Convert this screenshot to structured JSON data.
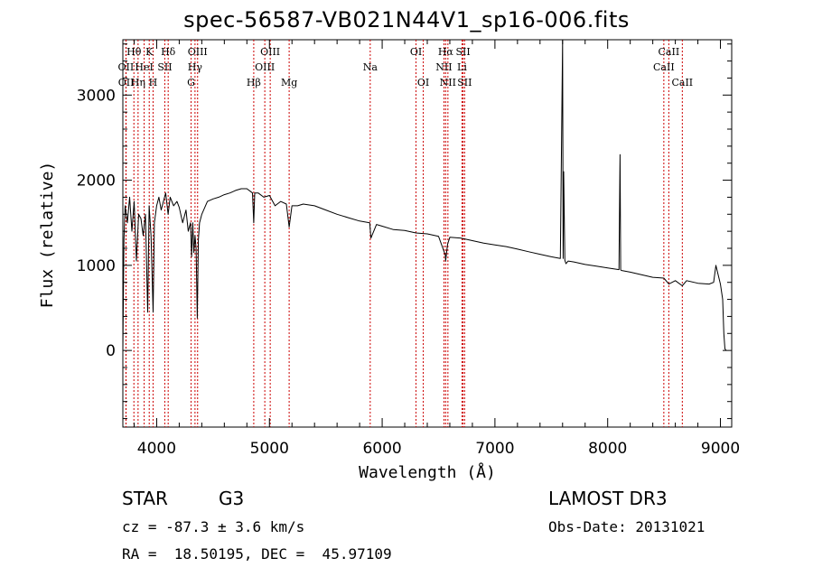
{
  "chart_data": {
    "type": "line",
    "title": "spec-56587-VB021N44V1_sp16-006.fits",
    "xlabel": "Wavelength (Å)",
    "ylabel": "Flux (relative)",
    "xlim": [
      3700,
      9100
    ],
    "ylim": [
      -900,
      3650
    ],
    "xticks": [
      {
        "value": 4000,
        "label": "4000"
      },
      {
        "value": 5000,
        "label": "5000"
      },
      {
        "value": 6000,
        "label": "6000"
      },
      {
        "value": 7000,
        "label": "7000"
      },
      {
        "value": 8000,
        "label": "8000"
      },
      {
        "value": 9000,
        "label": "9000"
      }
    ],
    "yticks": [
      {
        "value": 0,
        "label": "0"
      },
      {
        "value": 1000,
        "label": "1000"
      },
      {
        "value": 2000,
        "label": "2000"
      },
      {
        "value": 3000,
        "label": "3000"
      }
    ],
    "series": [
      {
        "name": "flux",
        "x": [
          3700,
          3710,
          3720,
          3740,
          3760,
          3780,
          3800,
          3820,
          3840,
          3860,
          3880,
          3900,
          3920,
          3933,
          3950,
          3968,
          3980,
          4000,
          4020,
          4040,
          4060,
          4080,
          4101,
          4120,
          4150,
          4180,
          4200,
          4230,
          4260,
          4280,
          4300,
          4310,
          4320,
          4330,
          4340,
          4350,
          4360,
          4370,
          4380,
          4400,
          4450,
          4500,
          4550,
          4600,
          4650,
          4700,
          4750,
          4800,
          4850,
          4861,
          4870,
          4900,
          4950,
          5000,
          5050,
          5100,
          5150,
          5175,
          5200,
          5250,
          5300,
          5400,
          5500,
          5600,
          5700,
          5800,
          5890,
          5900,
          5950,
          6000,
          6100,
          6200,
          6300,
          6400,
          6500,
          6560,
          6563,
          6580,
          6600,
          6700,
          6800,
          6900,
          7000,
          7100,
          7200,
          7300,
          7400,
          7500,
          7580,
          7600,
          7605,
          7610,
          7620,
          7630,
          7650,
          7700,
          7800,
          7900,
          8000,
          8100,
          8110,
          8115,
          8120,
          8200,
          8300,
          8400,
          8498,
          8542,
          8600,
          8662,
          8700,
          8800,
          8900,
          8940,
          8960,
          9000,
          9020,
          9030,
          9040,
          9050
        ],
        "y": [
          0,
          1300,
          1700,
          1500,
          1800,
          1400,
          1750,
          1050,
          1600,
          1550,
          1350,
          1600,
          450,
          1700,
          1350,
          450,
          1500,
          1700,
          1800,
          1650,
          1750,
          1850,
          1600,
          1800,
          1700,
          1750,
          1680,
          1500,
          1650,
          1400,
          1500,
          1100,
          1500,
          1150,
          1350,
          1200,
          380,
          1300,
          1500,
          1600,
          1750,
          1780,
          1800,
          1830,
          1850,
          1880,
          1900,
          1900,
          1850,
          1500,
          1850,
          1850,
          1800,
          1820,
          1700,
          1750,
          1720,
          1450,
          1700,
          1700,
          1720,
          1700,
          1650,
          1600,
          1560,
          1520,
          1500,
          1320,
          1480,
          1460,
          1420,
          1410,
          1380,
          1370,
          1340,
          1120,
          1050,
          1250,
          1330,
          1320,
          1290,
          1260,
          1240,
          1220,
          1190,
          1160,
          1130,
          1100,
          1080,
          3680,
          1080,
          2100,
          1060,
          1020,
          1050,
          1040,
          1010,
          990,
          970,
          950,
          2300,
          950,
          940,
          920,
          890,
          860,
          850,
          780,
          820,
          760,
          820,
          790,
          780,
          800,
          1000,
          780,
          600,
          200,
          20,
          0
        ]
      }
    ],
    "lines": [
      {
        "name": "OII",
        "x": 3727,
        "row": 1
      },
      {
        "name": "OII",
        "x": 3729,
        "row": 2
      },
      {
        "name": "Hθ",
        "x": 3798,
        "row": 0
      },
      {
        "name": "Hη",
        "x": 3835,
        "row": 2
      },
      {
        "name": "HeI",
        "x": 3889,
        "row": 1
      },
      {
        "name": "K",
        "x": 3934,
        "row": 0
      },
      {
        "name": "H",
        "x": 3968,
        "row": 2
      },
      {
        "name": "SII",
        "x": 4072,
        "row": 1
      },
      {
        "name": "Hδ",
        "x": 4102,
        "row": 0
      },
      {
        "name": "G",
        "x": 4305,
        "row": 2
      },
      {
        "name": "Hγ",
        "x": 4340,
        "row": 1
      },
      {
        "name": "OIII",
        "x": 4363,
        "row": 0
      },
      {
        "name": "Hβ",
        "x": 4861,
        "row": 2
      },
      {
        "name": "OIII",
        "x": 4959,
        "row": 1
      },
      {
        "name": "OIII",
        "x": 5007,
        "row": 0
      },
      {
        "name": "Mg",
        "x": 5175,
        "row": 2
      },
      {
        "name": "Na",
        "x": 5894,
        "row": 1
      },
      {
        "name": "OI",
        "x": 6300,
        "row": 0
      },
      {
        "name": "OI",
        "x": 6364,
        "row": 2
      },
      {
        "name": "NII",
        "x": 6548,
        "row": 1
      },
      {
        "name": "Hα",
        "x": 6563,
        "row": 0
      },
      {
        "name": "NII",
        "x": 6583,
        "row": 2
      },
      {
        "name": "Li",
        "x": 6708,
        "row": 1
      },
      {
        "name": "SII",
        "x": 6717,
        "row": 0
      },
      {
        "name": "SII",
        "x": 6731,
        "row": 2
      },
      {
        "name": "CaII",
        "x": 8498,
        "row": 1
      },
      {
        "name": "CaII",
        "x": 8542,
        "row": 0
      },
      {
        "name": "CaII",
        "x": 8662,
        "row": 2
      }
    ]
  },
  "info": {
    "class_label": "STAR",
    "subclass": "G3",
    "survey": "LAMOST DR3",
    "redshift_text": "cz = -87.3 ± 3.6 km/s",
    "obs_date_text": "Obs-Date: 20131021",
    "coords_text": "RA =  18.50195, DEC =  45.97109"
  },
  "colors": {
    "spectrum": "#000000",
    "line_marker": "#cc0000",
    "axes": "#000000"
  }
}
